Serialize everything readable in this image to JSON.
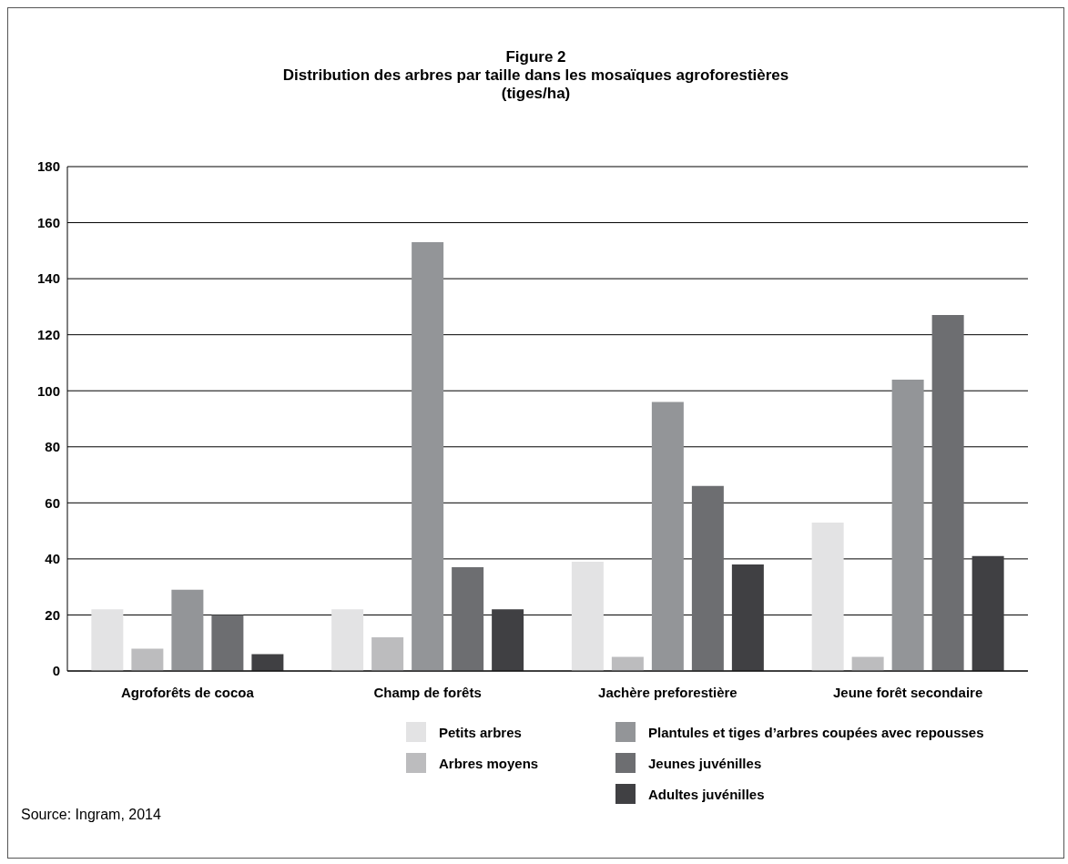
{
  "chart_data": {
    "type": "bar",
    "title": "Figure 2\nDistribution des arbres par taille dans les mosaïques agroforestières\n(tiges/ha)",
    "categories": [
      "Agroforêts de cocoa",
      "Champ de forêts",
      "Jachère preforestière",
      "Jeune forêt secondaire"
    ],
    "series": [
      {
        "name": "Petits arbres",
        "color": "#e3e3e4",
        "values": [
          22,
          22,
          39,
          53
        ]
      },
      {
        "name": "Arbres moyens",
        "color": "#bcbcbe",
        "values": [
          8,
          12,
          5,
          5
        ]
      },
      {
        "name": "Plantules et tiges d’arbres coupées avec repousses",
        "color": "#939598",
        "values": [
          29,
          153,
          96,
          104
        ]
      },
      {
        "name": "Jeunes juvénilles",
        "color": "#6d6e71",
        "values": [
          20,
          37,
          66,
          127
        ]
      },
      {
        "name": "Adultes juvénilles",
        "color": "#404043",
        "values": [
          6,
          22,
          38,
          41
        ]
      }
    ],
    "ylim": [
      0,
      180
    ],
    "yticks": [
      0,
      20,
      40,
      60,
      80,
      100,
      120,
      140,
      160,
      180
    ],
    "grid": "y",
    "legend": "bottom",
    "annotations": [
      "Source: Ingram, 2014"
    ]
  }
}
